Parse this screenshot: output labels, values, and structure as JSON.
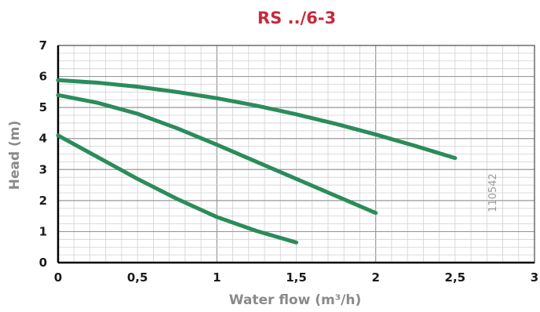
{
  "chart_data": {
    "type": "line",
    "title": "RS ../6-3",
    "xlabel": "Water flow (m³/h)",
    "ylabel": "Head (m)",
    "xlim": [
      0,
      3
    ],
    "ylim": [
      0,
      7
    ],
    "x_ticks": [
      "0",
      "0,5",
      "1",
      "1,5",
      "2",
      "2,5",
      "3"
    ],
    "y_ticks": [
      "0",
      "1",
      "2",
      "3",
      "4",
      "5",
      "6",
      "7"
    ],
    "grid": true,
    "annotation": "110542",
    "series_color": "#2a8c5a",
    "series": [
      {
        "x": [
          0,
          0.25,
          0.5,
          0.75,
          1.0,
          1.25,
          1.5,
          1.75,
          2.0,
          2.25,
          2.5
        ],
        "y": [
          5.88,
          5.8,
          5.67,
          5.5,
          5.3,
          5.06,
          4.78,
          4.47,
          4.13,
          3.76,
          3.37
        ]
      },
      {
        "x": [
          0,
          0.25,
          0.5,
          0.75,
          1.0,
          1.25,
          1.5,
          1.75,
          2.0
        ],
        "y": [
          5.4,
          5.15,
          4.8,
          4.33,
          3.8,
          3.25,
          2.7,
          2.15,
          1.6
        ]
      },
      {
        "x": [
          0,
          0.25,
          0.5,
          0.75,
          1.0,
          1.25,
          1.5
        ],
        "y": [
          4.1,
          3.4,
          2.7,
          2.05,
          1.47,
          1.02,
          0.65
        ]
      }
    ]
  }
}
